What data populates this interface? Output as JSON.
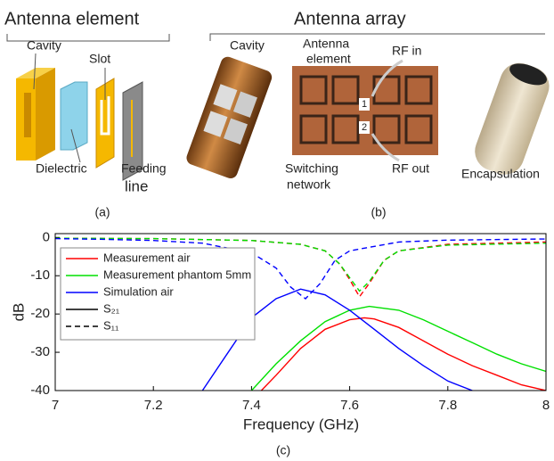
{
  "panel_a": {
    "title": "Antenna element",
    "labels": [
      "Cavity",
      "Slot",
      "Dielectric",
      "Feeding",
      "line"
    ],
    "caption": "(a)"
  },
  "panel_b": {
    "title": "Antenna array",
    "labels": [
      "Cavity",
      "Antenna",
      "element",
      "RF in",
      "1",
      "2",
      "Switching",
      "network",
      "RF out",
      "Encapsulation"
    ],
    "caption": "(b)"
  },
  "chart_data": {
    "type": "line",
    "xlabel": "Frequency (GHz)",
    "ylabel": "dB",
    "caption": "(c)",
    "xlim": [
      7,
      8
    ],
    "xticks": [
      7,
      7.2,
      7.4,
      7.6,
      7.8,
      8
    ],
    "ylim": [
      -40,
      1
    ],
    "yticks": [
      0,
      -10,
      -20,
      -30,
      -40
    ],
    "line_styles": [
      {
        "label": "S₂₁",
        "dash": "solid"
      },
      {
        "label": "S₁₁",
        "dash": "dashed"
      }
    ],
    "series": [
      {
        "name": "Measurement air",
        "color": "#ff0000",
        "s21": {
          "x": [
            7.42,
            7.45,
            7.5,
            7.55,
            7.6,
            7.63,
            7.65,
            7.7,
            7.75,
            7.8,
            7.85,
            7.9,
            7.95,
            8
          ],
          "values": [
            -40,
            -36,
            -29,
            -24,
            -21.5,
            -21,
            -21.3,
            -23.5,
            -27,
            -30.5,
            -33.5,
            -36,
            -38.5,
            -40
          ]
        },
        "s11": {
          "x": [
            7,
            7.2,
            7.4,
            7.5,
            7.55,
            7.58,
            7.6,
            7.62,
            7.64,
            7.67,
            7.7,
            7.8,
            8
          ],
          "values": [
            -0.2,
            -0.3,
            -0.8,
            -1.8,
            -3.5,
            -7,
            -11,
            -15.5,
            -12,
            -6,
            -3.5,
            -1.8,
            -1.2
          ]
        }
      },
      {
        "name": "Measurement phantom 5mm",
        "color": "#00e000",
        "s21": {
          "x": [
            7.4,
            7.45,
            7.5,
            7.55,
            7.6,
            7.64,
            7.7,
            7.75,
            7.8,
            7.85,
            7.9,
            7.95,
            8
          ],
          "values": [
            -40,
            -33,
            -27,
            -22,
            -19,
            -18,
            -19,
            -21.5,
            -24.5,
            -27.5,
            -30.5,
            -33,
            -35
          ]
        },
        "s11": {
          "x": [
            7,
            7.2,
            7.4,
            7.5,
            7.55,
            7.58,
            7.6,
            7.62,
            7.64,
            7.67,
            7.7,
            7.8,
            8
          ],
          "values": [
            -0.2,
            -0.3,
            -0.8,
            -1.8,
            -3.5,
            -7,
            -10.5,
            -14,
            -11.5,
            -6,
            -3.5,
            -2,
            -1.5
          ]
        }
      },
      {
        "name": "Simulation air",
        "color": "#0000ff",
        "s21": {
          "x": [
            7.3,
            7.35,
            7.4,
            7.45,
            7.5,
            7.55,
            7.6,
            7.65,
            7.7,
            7.75,
            7.8,
            7.85
          ],
          "values": [
            -40,
            -30.5,
            -21,
            -16,
            -13.5,
            -15,
            -19,
            -24,
            -29,
            -33.5,
            -37.5,
            -40
          ]
        },
        "s11": {
          "x": [
            7,
            7.1,
            7.2,
            7.3,
            7.4,
            7.45,
            7.48,
            7.51,
            7.54,
            7.57,
            7.6,
            7.7,
            7.8,
            8
          ],
          "values": [
            -0.3,
            -0.5,
            -0.8,
            -1.5,
            -4,
            -8,
            -13,
            -16,
            -12,
            -6,
            -3.5,
            -1.2,
            -0.7,
            -0.4
          ]
        }
      }
    ]
  }
}
